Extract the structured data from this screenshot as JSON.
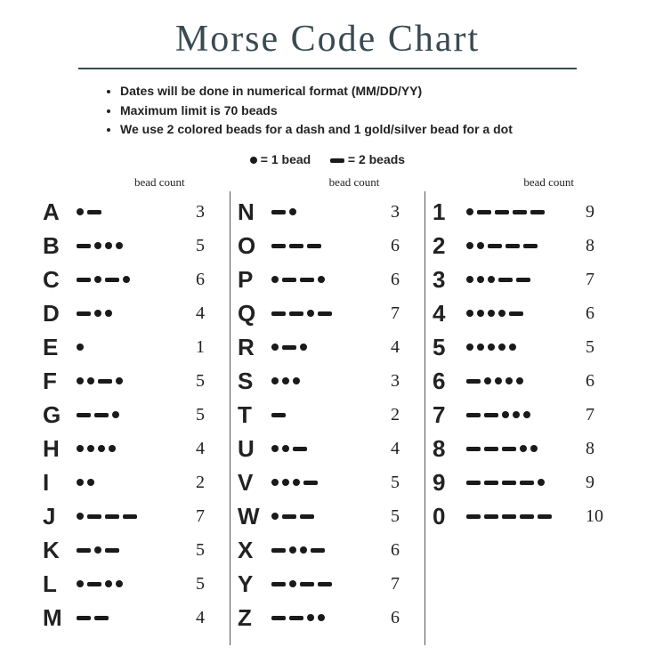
{
  "title": "Morse Code Chart",
  "notes": [
    "Dates will be done in numerical format (MM/DD/YY)",
    "Maximum limit is 70 beads",
    "We use 2 colored beads for a dash and 1 gold/silver bead for a dot"
  ],
  "legend": {
    "dot_label": "= 1 bead",
    "dash_label": "= 2 beads"
  },
  "column_header": "bead count",
  "colors": {
    "symbol": "#1a1a1a",
    "title": "#3a4a52",
    "background": "#ffffff"
  },
  "columns": [
    [
      {
        "char": "A",
        "code": ".-",
        "count": 3
      },
      {
        "char": "B",
        "code": "-...",
        "count": 5
      },
      {
        "char": "C",
        "code": "-.-.",
        "count": 6
      },
      {
        "char": "D",
        "code": "-..",
        "count": 4
      },
      {
        "char": "E",
        "code": ".",
        "count": 1
      },
      {
        "char": "F",
        "code": "..-.",
        "count": 5
      },
      {
        "char": "G",
        "code": "--.",
        "count": 5
      },
      {
        "char": "H",
        "code": "....",
        "count": 4
      },
      {
        "char": "I",
        "code": "..",
        "count": 2
      },
      {
        "char": "J",
        "code": ".---",
        "count": 7
      },
      {
        "char": "K",
        "code": "-.-",
        "count": 5
      },
      {
        "char": "L",
        "code": ".-..",
        "count": 5
      },
      {
        "char": "M",
        "code": "--",
        "count": 4
      }
    ],
    [
      {
        "char": "N",
        "code": "-.",
        "count": 3
      },
      {
        "char": "O",
        "code": "---",
        "count": 6
      },
      {
        "char": "P",
        "code": ".--.",
        "count": 6
      },
      {
        "char": "Q",
        "code": "--.-",
        "count": 7
      },
      {
        "char": "R",
        "code": ".-.",
        "count": 4
      },
      {
        "char": "S",
        "code": "...",
        "count": 3
      },
      {
        "char": "T",
        "code": "-",
        "count": 2
      },
      {
        "char": "U",
        "code": "..-",
        "count": 4
      },
      {
        "char": "V",
        "code": "...-",
        "count": 5
      },
      {
        "char": "W",
        "code": ".--",
        "count": 5
      },
      {
        "char": "X",
        "code": "-..-",
        "count": 6
      },
      {
        "char": "Y",
        "code": "-.--",
        "count": 7
      },
      {
        "char": "Z",
        "code": "--..",
        "count": 6
      }
    ],
    [
      {
        "char": "1",
        "code": ".----",
        "count": 9
      },
      {
        "char": "2",
        "code": "..---",
        "count": 8
      },
      {
        "char": "3",
        "code": "...--",
        "count": 7
      },
      {
        "char": "4",
        "code": "....-",
        "count": 6
      },
      {
        "char": "5",
        "code": ".....",
        "count": 5
      },
      {
        "char": "6",
        "code": "-....",
        "count": 6
      },
      {
        "char": "7",
        "code": "--...",
        "count": 7
      },
      {
        "char": "8",
        "code": "---..",
        "count": 8
      },
      {
        "char": "9",
        "code": "----.",
        "count": 9
      },
      {
        "char": "0",
        "code": "-----",
        "count": 10
      }
    ]
  ]
}
